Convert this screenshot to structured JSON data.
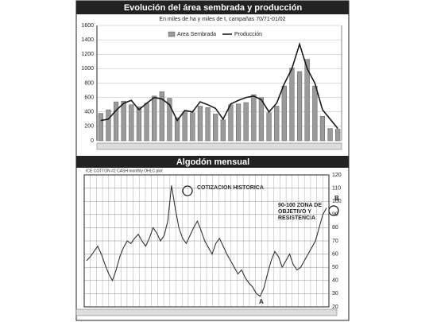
{
  "chart_data": [
    {
      "type": "combo",
      "title": "Evolución del área sembrada y producción",
      "subtitle": "En miles de ha y miles de t, campañas 70/71-01/02",
      "series": [
        {
          "name": "Area Sembrada",
          "type": "bar",
          "color": "#9a9a9a",
          "values": [
            380,
            430,
            540,
            550,
            500,
            470,
            520,
            620,
            680,
            590,
            320,
            400,
            390,
            480,
            460,
            370,
            290,
            500,
            510,
            530,
            640,
            600,
            390,
            480,
            760,
            1010,
            960,
            1130,
            760,
            340,
            170,
            160
          ]
        },
        {
          "name": "Producción",
          "type": "line",
          "color": "#1a1a1a",
          "values": [
            280,
            300,
            420,
            520,
            560,
            430,
            520,
            600,
            580,
            500,
            280,
            420,
            400,
            540,
            500,
            450,
            300,
            510,
            560,
            600,
            620,
            570,
            400,
            520,
            790,
            1000,
            1340,
            1000,
            800,
            430,
            300,
            170
          ]
        }
      ],
      "ylim": [
        0,
        1600
      ],
      "yticks": [
        0,
        200,
        400,
        600,
        800,
        1000,
        1200,
        1400,
        1600
      ],
      "grid": true
    },
    {
      "type": "line",
      "title": "Algodón mensual",
      "subtitle": "ICE COTTON #2 CASH  monthly OHLC plot",
      "annotations": [
        {
          "text": "COTIZACION HISTORICA"
        },
        {
          "text": "90-100 ZONA DE OBJETIVO Y RESISTENCIA"
        },
        {
          "text": "A"
        },
        {
          "text": "B"
        }
      ],
      "series": [
        {
          "name": "ICE COTTON #2 CASH",
          "color": "#333333",
          "values": [
            55,
            58,
            62,
            66,
            60,
            52,
            45,
            40,
            48,
            58,
            65,
            70,
            68,
            72,
            75,
            70,
            66,
            72,
            80,
            76,
            70,
            74,
            85,
            112,
            95,
            80,
            72,
            68,
            74,
            80,
            85,
            78,
            70,
            65,
            60,
            68,
            72,
            66,
            60,
            55,
            50,
            45,
            48,
            42,
            38,
            35,
            30,
            28,
            34,
            45,
            55,
            62,
            58,
            50,
            55,
            60,
            52,
            48,
            50,
            55,
            60,
            65,
            70,
            80,
            90,
            95
          ]
        }
      ],
      "ylim": [
        20,
        120
      ],
      "yticks": [
        20,
        30,
        40,
        50,
        60,
        70,
        80,
        90,
        100,
        110,
        120
      ],
      "y_axis_side": "right",
      "grid": true
    }
  ]
}
